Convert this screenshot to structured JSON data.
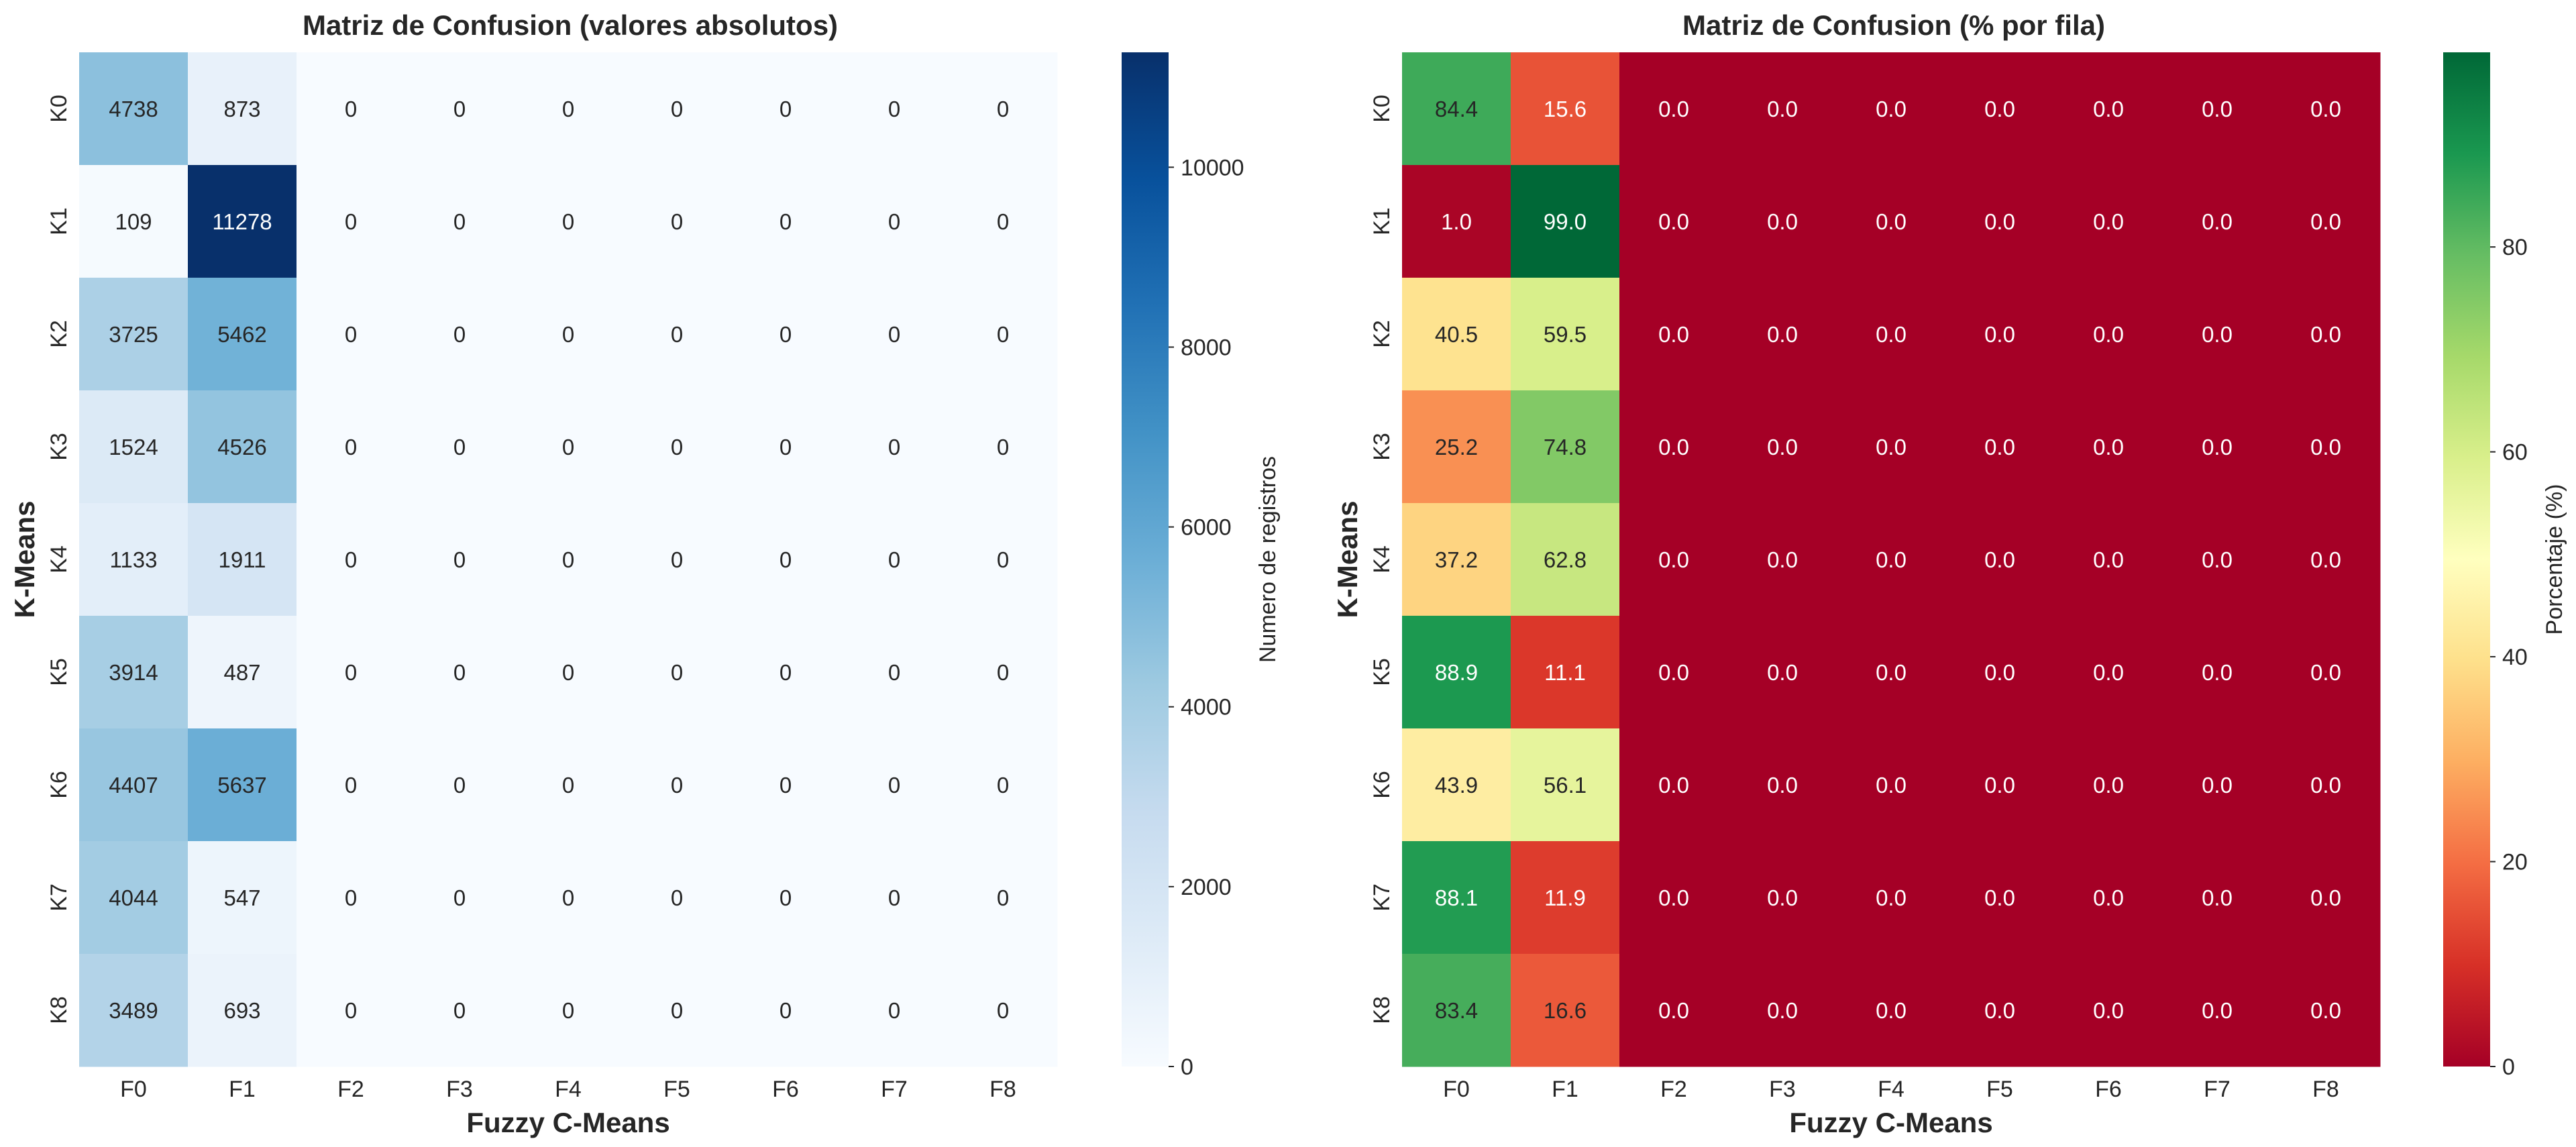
{
  "chart_data": [
    {
      "type": "heatmap",
      "title": "Matriz de Confusion (valores absolutos)",
      "xlabel": "Fuzzy C-Means",
      "ylabel": "K-Means",
      "x_categories": [
        "F0",
        "F1",
        "F2",
        "F3",
        "F4",
        "F5",
        "F6",
        "F7",
        "F8"
      ],
      "y_categories": [
        "K0",
        "K1",
        "K2",
        "K3",
        "K4",
        "K5",
        "K6",
        "K7",
        "K8"
      ],
      "values": [
        [
          4738,
          873,
          0,
          0,
          0,
          0,
          0,
          0,
          0
        ],
        [
          109,
          11278,
          0,
          0,
          0,
          0,
          0,
          0,
          0
        ],
        [
          3725,
          5462,
          0,
          0,
          0,
          0,
          0,
          0,
          0
        ],
        [
          1524,
          4526,
          0,
          0,
          0,
          0,
          0,
          0,
          0
        ],
        [
          1133,
          1911,
          0,
          0,
          0,
          0,
          0,
          0,
          0
        ],
        [
          3914,
          487,
          0,
          0,
          0,
          0,
          0,
          0,
          0
        ],
        [
          4407,
          5637,
          0,
          0,
          0,
          0,
          0,
          0,
          0
        ],
        [
          4044,
          547,
          0,
          0,
          0,
          0,
          0,
          0,
          0
        ],
        [
          3489,
          693,
          0,
          0,
          0,
          0,
          0,
          0,
          0
        ]
      ],
      "value_format": "int",
      "colormap": "Blues",
      "colormap_stops": [
        "#f7fbff",
        "#deebf7",
        "#c6dbef",
        "#9ecae1",
        "#6baed6",
        "#4292c6",
        "#2171b5",
        "#08519c",
        "#08306b"
      ],
      "vmin": 0,
      "vmax": 11278,
      "colorbar": {
        "label": "Numero de registros",
        "ticks": [
          0,
          2000,
          4000,
          6000,
          8000,
          10000
        ]
      }
    },
    {
      "type": "heatmap",
      "title": "Matriz de Confusion (% por fila)",
      "xlabel": "Fuzzy C-Means",
      "ylabel": "K-Means",
      "x_categories": [
        "F0",
        "F1",
        "F2",
        "F3",
        "F4",
        "F5",
        "F6",
        "F7",
        "F8"
      ],
      "y_categories": [
        "K0",
        "K1",
        "K2",
        "K3",
        "K4",
        "K5",
        "K6",
        "K7",
        "K8"
      ],
      "values": [
        [
          84.4,
          15.6,
          0,
          0,
          0,
          0,
          0,
          0,
          0
        ],
        [
          1.0,
          99.0,
          0,
          0,
          0,
          0,
          0,
          0,
          0
        ],
        [
          40.5,
          59.5,
          0,
          0,
          0,
          0,
          0,
          0,
          0
        ],
        [
          25.2,
          74.8,
          0,
          0,
          0,
          0,
          0,
          0,
          0
        ],
        [
          37.2,
          62.8,
          0,
          0,
          0,
          0,
          0,
          0,
          0
        ],
        [
          88.9,
          11.1,
          0,
          0,
          0,
          0,
          0,
          0,
          0
        ],
        [
          43.9,
          56.1,
          0,
          0,
          0,
          0,
          0,
          0,
          0
        ],
        [
          88.1,
          11.9,
          0,
          0,
          0,
          0,
          0,
          0,
          0
        ],
        [
          83.4,
          16.6,
          0,
          0,
          0,
          0,
          0,
          0,
          0
        ]
      ],
      "value_format": "1dp",
      "colormap": "RdYlGn",
      "colormap_stops": [
        "#a50026",
        "#d73027",
        "#f46d43",
        "#fdae61",
        "#fee08b",
        "#ffffbf",
        "#d9ef8b",
        "#a6d96a",
        "#66bd63",
        "#1a9850",
        "#006837"
      ],
      "vmin": 0,
      "vmax": 99.0,
      "colorbar": {
        "label": "Porcentaje (%)",
        "ticks": [
          0,
          20,
          40,
          60,
          80
        ]
      }
    }
  ]
}
